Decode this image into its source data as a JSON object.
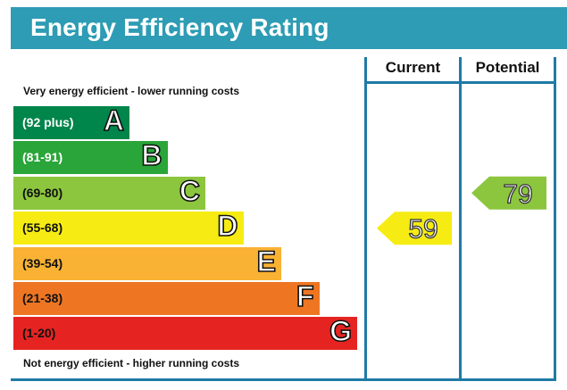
{
  "header": {
    "title": "Energy Efficiency Rating"
  },
  "columns": {
    "current": "Current",
    "potential": "Potential"
  },
  "captions": {
    "top": "Very energy efficient - lower running costs",
    "bottom": "Not energy efficient - higher running costs"
  },
  "chart_data": {
    "type": "bar",
    "title": "Energy Efficiency Rating",
    "bands": [
      {
        "letter": "A",
        "range": "(92 plus)",
        "color": "#00854a",
        "light_text": true
      },
      {
        "letter": "B",
        "range": "(81-91)",
        "color": "#2aa539",
        "light_text": true
      },
      {
        "letter": "C",
        "range": "(69-80)",
        "color": "#8cc63e",
        "light_text": false
      },
      {
        "letter": "D",
        "range": "(55-68)",
        "color": "#f6ec13",
        "light_text": false
      },
      {
        "letter": "E",
        "range": "(39-54)",
        "color": "#f9b233",
        "light_text": false
      },
      {
        "letter": "F",
        "range": "(21-38)",
        "color": "#ee7623",
        "light_text": false
      },
      {
        "letter": "G",
        "range": "(1-20)",
        "color": "#e52421",
        "light_text": false
      }
    ],
    "current": {
      "value": 59,
      "label": "59",
      "band": "D",
      "color": "#f6ec13"
    },
    "potential": {
      "value": 79,
      "label": "79",
      "band": "C",
      "color": "#8cc63e"
    }
  }
}
